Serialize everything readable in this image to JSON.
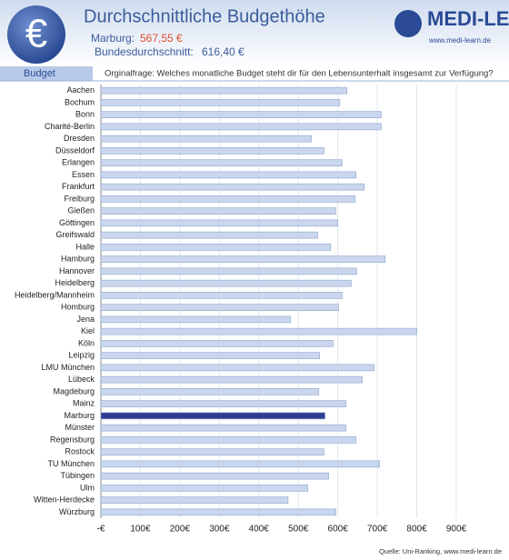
{
  "chart_data": {
    "type": "bar",
    "orientation": "horizontal",
    "title": "Durchschnittliche Budgethöhe",
    "icon_text": "€",
    "annotations": [
      {
        "label": "Marburg:",
        "text": "567,55 €"
      },
      {
        "label": "Bundesdurchschnitt:",
        "text": "616,40 €"
      }
    ],
    "logo": "MEDI-LEARN",
    "logo_url": "www.medi-learn.de",
    "section_label": "Budget",
    "question": "Orginalfrage: Welches monatliche Budget steht dir für den Lebensunterhalt insgesamt zur Verfügung?",
    "source": "Quelle: Uni-Ranking, www.medi-learn.de",
    "categories": [
      "Aachen",
      "Bochum",
      "Bonn",
      "Charité-Berlin",
      "Dresden",
      "Düsseldorf",
      "Erlangen",
      "Essen",
      "Frankfurt",
      "Freiburg",
      "Gießen",
      "Göttingen",
      "Greifswald",
      "Halle",
      "Hamburg",
      "Hannover",
      "Heidelberg",
      "Heidelberg/Mannheim",
      "Homburg",
      "Jena",
      "Kiel",
      "Köln",
      "Leipzig",
      "LMU München",
      "Lübeck",
      "Magdeburg",
      "Mainz",
      "Marburg",
      "Münster",
      "Regensburg",
      "Rostock",
      "TU München",
      "Tübingen",
      "Ulm",
      "Witten-Herdecke",
      "Würzburg"
    ],
    "values": [
      623,
      605,
      710,
      710,
      533,
      565,
      611,
      646,
      667,
      644,
      595,
      600,
      549,
      582,
      720,
      648,
      634,
      611,
      602,
      480,
      800,
      588,
      554,
      692,
      662,
      552,
      621,
      567.55,
      621,
      646,
      565,
      706,
      577,
      524,
      474,
      595
    ],
    "colors": [
      "#c9d6ee",
      "#c9d6ee",
      "#c9d6ee",
      "#c9d6ee",
      "#c9d6ee",
      "#c9d6ee",
      "#c9d6ee",
      "#c9d6ee",
      "#c9d6ee",
      "#c9d6ee",
      "#c9d6ee",
      "#c9d6ee",
      "#c9d6ee",
      "#c9d6ee",
      "#c9d6ee",
      "#c9d6ee",
      "#c9d6ee",
      "#c9d6ee",
      "#c9d6ee",
      "#c9d6ee",
      "#c9d6ee",
      "#c9d6ee",
      "#c9d6ee",
      "#c9d6ee",
      "#c9d6ee",
      "#c9d6ee",
      "#c9d6ee",
      "#2e3d8f",
      "#c9d6ee",
      "#c9d6ee",
      "#c9d6ee",
      "#c9d6ee",
      "#c9d6ee",
      "#c9d6ee",
      "#c9d6ee",
      "#c9d6ee"
    ],
    "xlim": [
      0,
      930
    ],
    "xticks": [
      {
        "value": 0,
        "label": "-€"
      },
      {
        "value": 100,
        "label": "100€"
      },
      {
        "value": 200,
        "label": "200€"
      },
      {
        "value": 300,
        "label": "300€"
      },
      {
        "value": 400,
        "label": "400€"
      },
      {
        "value": 500,
        "label": "500€"
      },
      {
        "value": 600,
        "label": "600€"
      },
      {
        "value": 700,
        "label": "700€"
      },
      {
        "value": 800,
        "label": "800€"
      },
      {
        "value": 900,
        "label": "900€"
      }
    ],
    "grid": true
  }
}
